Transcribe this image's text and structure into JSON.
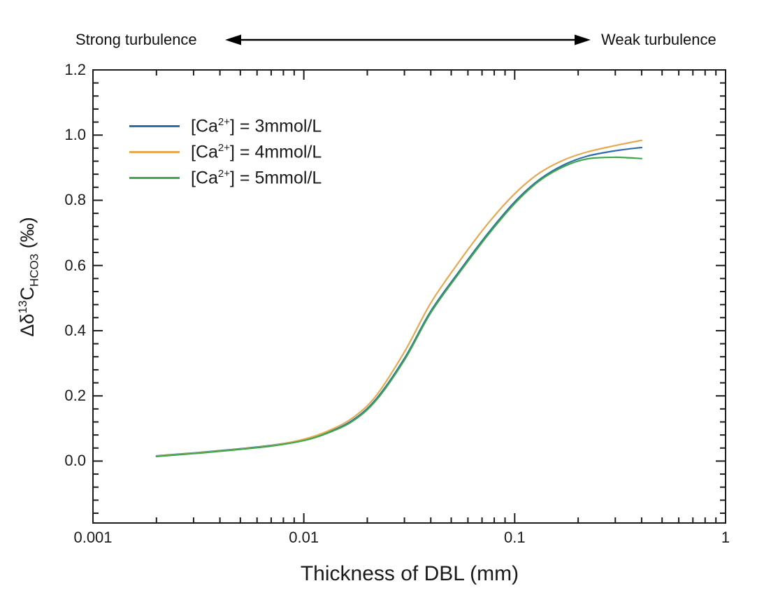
{
  "annotations": {
    "strong": "Strong turbulence",
    "weak": "Weak turbulence"
  },
  "axes": {
    "x": {
      "title": "Thickness of DBL (mm)",
      "scale": "log",
      "min": 0.001,
      "max": 1,
      "tick_values": [
        0.001,
        0.01,
        0.1,
        1
      ],
      "tick_labels": [
        "0.001",
        "0.01",
        "0.1",
        "1"
      ]
    },
    "y": {
      "title": {
        "d": "Δδ",
        "sup": "13",
        "c": "C",
        "sub": "HCO3",
        "unit": " (‰)"
      },
      "min": -0.19,
      "max": 1.2,
      "tick_values": [
        0.0,
        0.2,
        0.4,
        0.6,
        0.8,
        1.0,
        1.2
      ],
      "tick_labels": [
        "0.0",
        "0.2",
        "0.4",
        "0.6",
        "0.8",
        "1.0",
        "1.2"
      ],
      "minor_step": 0.04
    }
  },
  "legend": {
    "items": [
      {
        "prefix": "[Ca",
        "sup": "2+",
        "suffix": "] = 3mmol/L",
        "color": "#2d6dad"
      },
      {
        "prefix": "[Ca",
        "sup": "2+",
        "suffix": "] = 4mmol/L",
        "color": "#e8a852"
      },
      {
        "prefix": "[Ca",
        "sup": "2+",
        "suffix": "] = 5mmol/L",
        "color": "#3da84a"
      }
    ]
  },
  "chart_data": {
    "type": "line",
    "title": "",
    "xlabel": "Thickness of DBL (mm)",
    "ylabel": "Δδ13C_HCO3 (‰)",
    "x_scale": "log",
    "xlim": [
      0.001,
      1
    ],
    "ylim": [
      -0.19,
      1.2
    ],
    "grid": false,
    "legend_position": "upper left inside",
    "x": [
      0.002,
      0.003,
      0.004,
      0.005,
      0.007,
      0.01,
      0.013,
      0.017,
      0.022,
      0.03,
      0.04,
      0.055,
      0.075,
      0.1,
      0.13,
      0.17,
      0.22,
      0.3,
      0.4
    ],
    "series": [
      {
        "name": "[Ca2+] = 3mmol/L",
        "color": "#2d6dad",
        "values": [
          0.016,
          0.025,
          0.032,
          0.038,
          0.048,
          0.065,
          0.088,
          0.125,
          0.19,
          0.315,
          0.46,
          0.585,
          0.7,
          0.795,
          0.862,
          0.908,
          0.935,
          0.952,
          0.962
        ]
      },
      {
        "name": "[Ca2+] = 4mmol/L",
        "color": "#e8a852",
        "values": [
          0.015,
          0.024,
          0.031,
          0.037,
          0.047,
          0.067,
          0.092,
          0.132,
          0.2,
          0.335,
          0.485,
          0.615,
          0.73,
          0.82,
          0.882,
          0.923,
          0.948,
          0.968,
          0.984
        ]
      },
      {
        "name": "[Ca2+] = 5mmol/L",
        "color": "#3da84a",
        "values": [
          0.014,
          0.023,
          0.03,
          0.036,
          0.046,
          0.063,
          0.086,
          0.122,
          0.186,
          0.31,
          0.455,
          0.58,
          0.695,
          0.79,
          0.858,
          0.903,
          0.927,
          0.932,
          0.928
        ]
      }
    ],
    "annotations": [
      "Strong turbulence",
      "Weak turbulence"
    ]
  }
}
